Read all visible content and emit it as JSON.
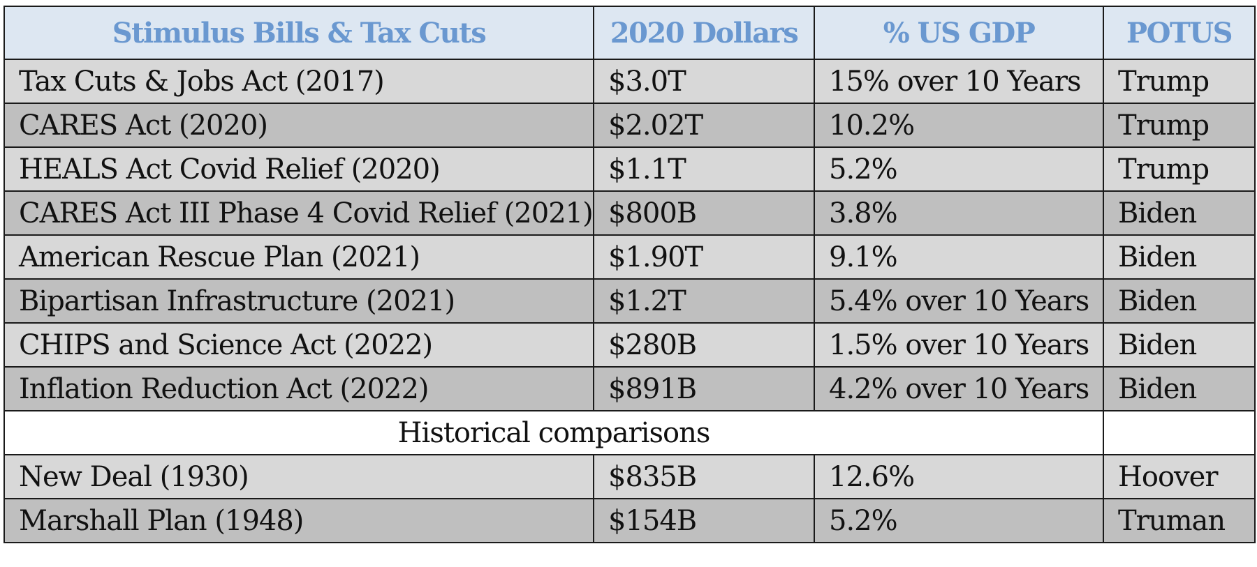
{
  "headers": {
    "bill": "Stimulus Bills & Tax Cuts",
    "dollars": "2020 Dollars",
    "gdp": "% US GDP",
    "potus": "POTUS"
  },
  "rows": [
    {
      "bill": "Tax Cuts & Jobs Act (2017)",
      "dollars": "$3.0T",
      "gdp": "15% over 10 Years",
      "potus": "Trump"
    },
    {
      "bill": "CARES Act (2020)",
      "dollars": "$2.02T",
      "gdp": "10.2%",
      "potus": "Trump"
    },
    {
      "bill": "HEALS Act Covid Relief (2020)",
      "dollars": "$1.1T",
      "gdp": "5.2%",
      "potus": "Trump"
    },
    {
      "bill": "CARES Act III Phase 4 Covid Relief (2021)",
      "dollars": "$800B",
      "gdp": "3.8%",
      "potus": "Biden"
    },
    {
      "bill": "American Rescue Plan (2021)",
      "dollars": "$1.90T",
      "gdp": "9.1%",
      "potus": "Biden"
    },
    {
      "bill": "Bipartisan Infrastructure (2021)",
      "dollars": "$1.2T",
      "gdp": "5.4% over 10 Years",
      "potus": "Biden"
    },
    {
      "bill": "CHIPS and Science Act (2022)",
      "dollars": "$280B",
      "gdp": "1.5% over 10 Years",
      "potus": "Biden"
    },
    {
      "bill": "Inflation Reduction Act (2022)",
      "dollars": "$891B",
      "gdp": "4.2% over 10 Years",
      "potus": "Biden"
    }
  ],
  "section_label": "Historical comparisons",
  "historical_rows": [
    {
      "bill": "New Deal (1930)",
      "dollars": "$835B",
      "gdp": "12.6%",
      "potus": "Hoover"
    },
    {
      "bill": "Marshall Plan (1948)",
      "dollars": "$154B",
      "gdp": "5.2%",
      "potus": "Truman"
    }
  ],
  "colors": {
    "header_bg": "#dde7f2",
    "header_text": "#6a98d0",
    "row_light": "#d8d8d8",
    "row_dark": "#bfbfbf"
  }
}
